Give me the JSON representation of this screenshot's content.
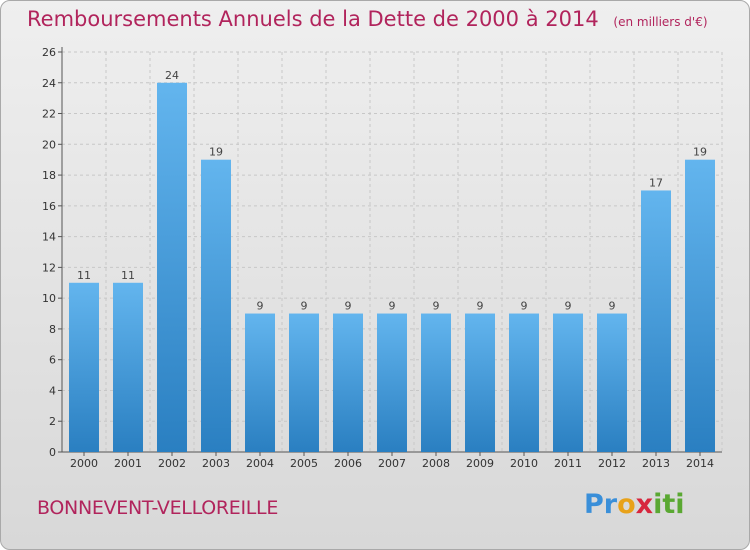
{
  "header": {
    "title": "Remboursements Annuels de la Dette de 2000 à 2014",
    "subtitle": "(en milliers d'€)"
  },
  "footer": {
    "city": "BONNEVENT-VELLOREILLE",
    "logo": "Proxiti"
  },
  "colors": {
    "title": "#b1245c",
    "bar_light": "#63b5ee",
    "bar_dark": "#2a7fc1",
    "grid": "#c7c7c7"
  },
  "chart_data": {
    "type": "bar",
    "title": "Remboursements Annuels de la Dette de 2000 à 2014",
    "subtitle": "(en milliers d'€)",
    "categories": [
      "2000",
      "2001",
      "2002",
      "2003",
      "2004",
      "2005",
      "2006",
      "2007",
      "2008",
      "2009",
      "2010",
      "2011",
      "2012",
      "2013",
      "2014"
    ],
    "values": [
      11,
      11,
      24,
      19,
      9,
      9,
      9,
      9,
      9,
      9,
      9,
      9,
      9,
      17,
      19
    ],
    "ylim": [
      0,
      26
    ],
    "yticks": [
      0,
      2,
      4,
      6,
      8,
      10,
      12,
      14,
      16,
      18,
      20,
      22,
      24,
      26
    ],
    "grid": true,
    "xlabel": "",
    "ylabel": ""
  }
}
